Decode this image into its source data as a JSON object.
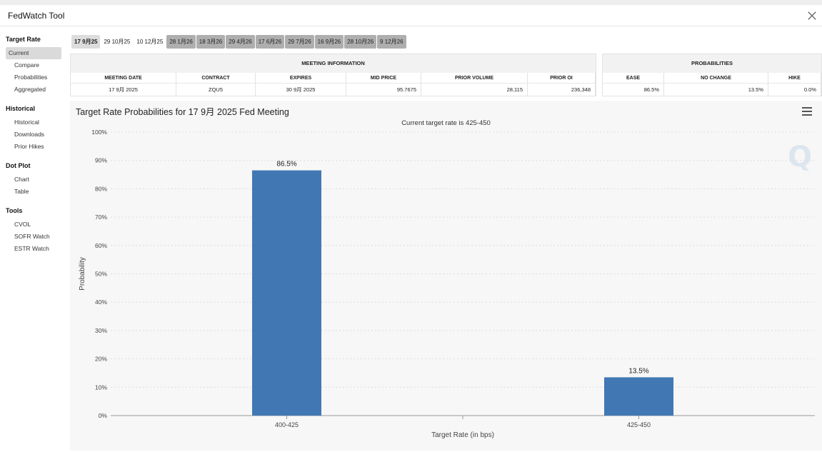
{
  "app": {
    "title": "FedWatch Tool"
  },
  "sidebar": [
    {
      "heading": "Target Rate",
      "items": [
        {
          "label": "Current",
          "active": true
        },
        {
          "label": "Compare"
        },
        {
          "label": "Probabilities"
        },
        {
          "label": "Aggregated"
        }
      ]
    },
    {
      "heading": "Historical",
      "items": [
        {
          "label": "Historical"
        },
        {
          "label": "Downloads"
        },
        {
          "label": "Prior Hikes"
        }
      ]
    },
    {
      "heading": "Dot Plot",
      "items": [
        {
          "label": "Chart"
        },
        {
          "label": "Table"
        }
      ]
    },
    {
      "heading": "Tools",
      "items": [
        {
          "label": "CVOL"
        },
        {
          "label": "SOFR Watch"
        },
        {
          "label": "ESTR Watch"
        }
      ]
    }
  ],
  "tabs": [
    {
      "label": "17 9月25",
      "style": "first"
    },
    {
      "label": "29 10月25",
      "style": "light"
    },
    {
      "label": "10 12月25",
      "style": "light"
    },
    {
      "label": "28 1月26"
    },
    {
      "label": "18 3月26"
    },
    {
      "label": "29 4月26"
    },
    {
      "label": "17 6月26"
    },
    {
      "label": "29 7月26"
    },
    {
      "label": "16 9月26"
    },
    {
      "label": "28 10月26"
    },
    {
      "label": "9 12月26"
    }
  ],
  "meeting_info": {
    "title": "MEETING INFORMATION",
    "headers": [
      "MEETING DATE",
      "CONTRACT",
      "EXPIRES",
      "MID PRICE",
      "PRIOR VOLUME",
      "PRIOR OI"
    ],
    "values": [
      "17 9月 2025",
      "ZQU5",
      "30 9月 2025",
      "95.7675",
      "28,115",
      "236,348"
    ]
  },
  "probabilities": {
    "title": "PROBABILITIES",
    "headers": [
      "EASE",
      "NO CHANGE",
      "HIKE"
    ],
    "values": [
      "86.5%",
      "13.5%",
      "0.0%"
    ]
  },
  "chart": {
    "title": "Target Rate Probabilities for 17 9月 2025 Fed Meeting",
    "subtitle": "Current target rate is 425-450"
  },
  "chart_data": {
    "type": "bar",
    "title": "Target Rate Probabilities for 17 9月 2025 Fed Meeting",
    "subtitle": "Current target rate is 425-450",
    "categories": [
      "400-425",
      "425-450"
    ],
    "values": [
      86.5,
      13.5
    ],
    "data_labels": [
      "86.5%",
      "13.5%"
    ],
    "xlabel": "Target Rate (in bps)",
    "ylabel": "Probability",
    "ylim": [
      0,
      100
    ],
    "yticks": [
      "0%",
      "10%",
      "20%",
      "30%",
      "40%",
      "50%",
      "60%",
      "70%",
      "80%",
      "90%",
      "100%"
    ],
    "grid": true,
    "bar_color": "#4178b4"
  }
}
